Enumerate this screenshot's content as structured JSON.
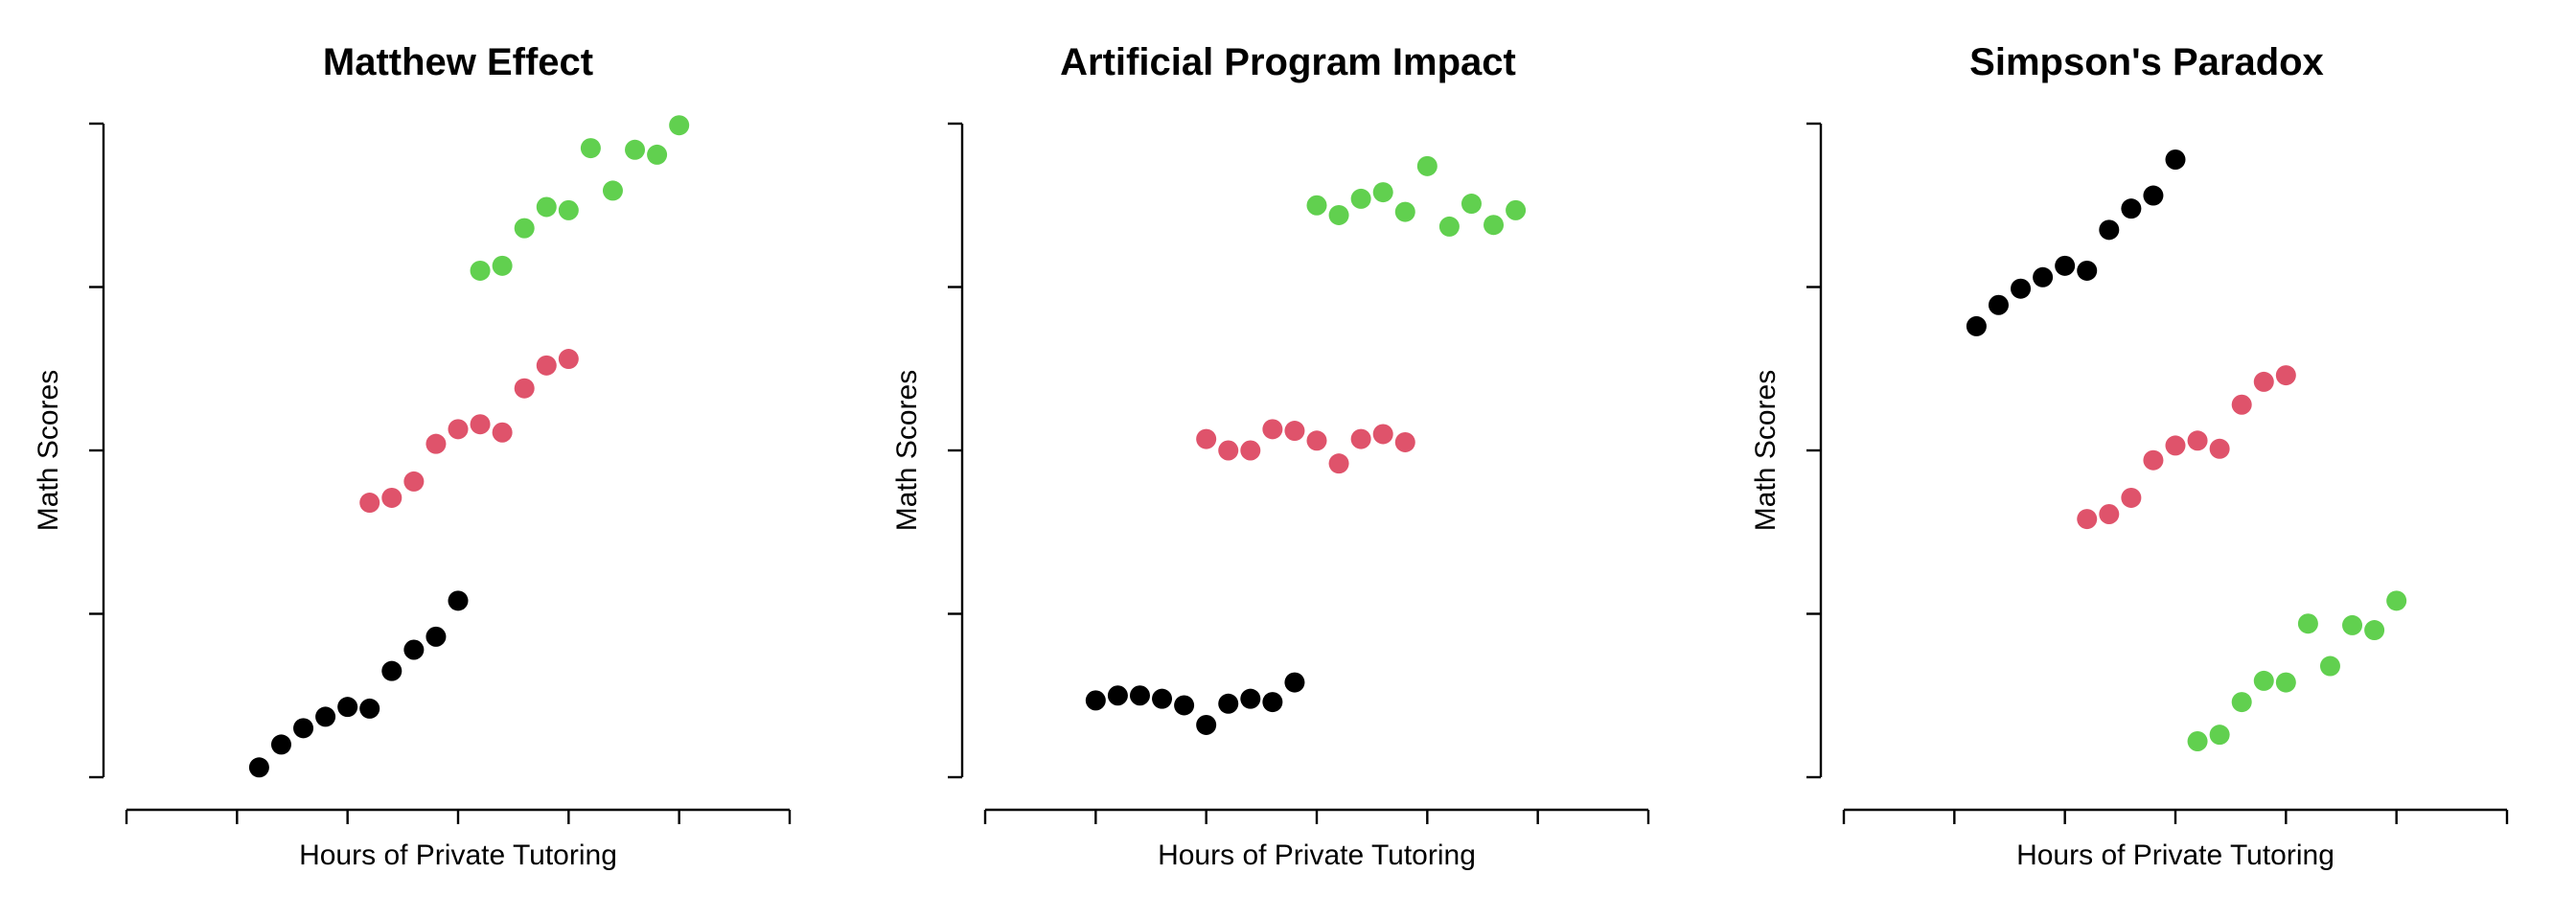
{
  "chart_data": [
    {
      "type": "scatter",
      "title": "Matthew Effect",
      "xlabel": "Hours of Private Tutoring",
      "ylabel": "Math Scores",
      "xlim": [
        -1,
        5
      ],
      "ylim": [
        0,
        4
      ],
      "xticks": [
        0,
        1,
        2,
        3,
        4
      ],
      "yticks": [
        0,
        1,
        2,
        3,
        4
      ],
      "tick_labels_shown": false,
      "grid": false,
      "legend": "none",
      "series": [
        {
          "color": "#000000",
          "points": [
            [
              0.2,
              0.06
            ],
            [
              0.4,
              0.2
            ],
            [
              0.6,
              0.3
            ],
            [
              0.8,
              0.37
            ],
            [
              1.0,
              0.43
            ],
            [
              1.2,
              0.42
            ],
            [
              1.4,
              0.65
            ],
            [
              1.6,
              0.78
            ],
            [
              1.8,
              0.86
            ],
            [
              2.0,
              1.08
            ]
          ]
        },
        {
          "color": "#DF536B",
          "points": [
            [
              1.2,
              1.68
            ],
            [
              1.4,
              1.71
            ],
            [
              1.6,
              1.81
            ],
            [
              1.8,
              2.04
            ],
            [
              2.0,
              2.13
            ],
            [
              2.2,
              2.16
            ],
            [
              2.4,
              2.11
            ],
            [
              2.6,
              2.38
            ],
            [
              2.8,
              2.52
            ],
            [
              3.0,
              2.56
            ]
          ]
        },
        {
          "color": "#61D04F",
          "points": [
            [
              2.2,
              3.1
            ],
            [
              2.4,
              3.13
            ],
            [
              2.6,
              3.36
            ],
            [
              2.8,
              3.49
            ],
            [
              3.0,
              3.47
            ],
            [
              3.2,
              3.85
            ],
            [
              3.4,
              3.59
            ],
            [
              3.6,
              3.84
            ],
            [
              3.8,
              3.81
            ],
            [
              4.0,
              3.99
            ]
          ]
        }
      ]
    },
    {
      "type": "scatter",
      "title": "Artificial Program Impact",
      "xlabel": "Hours of Private Tutoring",
      "ylabel": "Math Scores",
      "xlim": [
        -1,
        5
      ],
      "ylim": [
        0,
        4
      ],
      "xticks": [
        0,
        1,
        2,
        3,
        4
      ],
      "yticks": [
        0,
        1,
        2,
        3,
        4
      ],
      "tick_labels_shown": false,
      "grid": false,
      "legend": "none",
      "series": [
        {
          "color": "#000000",
          "points": [
            [
              0.0,
              0.47
            ],
            [
              0.2,
              0.5
            ],
            [
              0.4,
              0.5
            ],
            [
              0.6,
              0.48
            ],
            [
              0.8,
              0.44
            ],
            [
              1.0,
              0.32
            ],
            [
              1.2,
              0.45
            ],
            [
              1.4,
              0.48
            ],
            [
              1.6,
              0.46
            ],
            [
              1.8,
              0.58
            ]
          ]
        },
        {
          "color": "#DF536B",
          "points": [
            [
              1.0,
              2.07
            ],
            [
              1.2,
              2.0
            ],
            [
              1.4,
              2.0
            ],
            [
              1.6,
              2.13
            ],
            [
              1.8,
              2.12
            ],
            [
              2.0,
              2.06
            ],
            [
              2.2,
              1.92
            ],
            [
              2.4,
              2.07
            ],
            [
              2.6,
              2.1
            ],
            [
              2.8,
              2.05
            ]
          ]
        },
        {
          "color": "#61D04F",
          "points": [
            [
              2.0,
              3.5
            ],
            [
              2.2,
              3.44
            ],
            [
              2.4,
              3.54
            ],
            [
              2.6,
              3.58
            ],
            [
              2.8,
              3.46
            ],
            [
              3.0,
              3.74
            ],
            [
              3.2,
              3.37
            ],
            [
              3.4,
              3.51
            ],
            [
              3.6,
              3.38
            ],
            [
              3.8,
              3.47
            ]
          ]
        }
      ]
    },
    {
      "type": "scatter",
      "title": "Simpson's Paradox",
      "xlabel": "Hours of Private Tutoring",
      "ylabel": "Math Scores",
      "xlim": [
        -1,
        5
      ],
      "ylim": [
        0,
        4
      ],
      "xticks": [
        0,
        1,
        2,
        3,
        4
      ],
      "yticks": [
        0,
        1,
        2,
        3,
        4
      ],
      "tick_labels_shown": false,
      "grid": false,
      "legend": "none",
      "series": [
        {
          "color": "#000000",
          "points": [
            [
              0.2,
              2.76
            ],
            [
              0.4,
              2.89
            ],
            [
              0.6,
              2.99
            ],
            [
              0.8,
              3.06
            ],
            [
              1.0,
              3.13
            ],
            [
              1.2,
              3.1
            ],
            [
              1.4,
              3.35
            ],
            [
              1.6,
              3.48
            ],
            [
              1.8,
              3.56
            ],
            [
              2.0,
              3.78
            ]
          ]
        },
        {
          "color": "#DF536B",
          "points": [
            [
              1.2,
              1.58
            ],
            [
              1.4,
              1.61
            ],
            [
              1.6,
              1.71
            ],
            [
              1.8,
              1.94
            ],
            [
              2.0,
              2.03
            ],
            [
              2.2,
              2.06
            ],
            [
              2.4,
              2.01
            ],
            [
              2.6,
              2.28
            ],
            [
              2.8,
              2.42
            ],
            [
              3.0,
              2.46
            ]
          ]
        },
        {
          "color": "#61D04F",
          "points": [
            [
              2.2,
              0.22
            ],
            [
              2.4,
              0.26
            ],
            [
              2.6,
              0.46
            ],
            [
              2.8,
              0.59
            ],
            [
              3.0,
              0.58
            ],
            [
              3.2,
              0.94
            ],
            [
              3.4,
              0.68
            ],
            [
              3.6,
              0.93
            ],
            [
              3.8,
              0.9
            ],
            [
              4.0,
              1.08
            ]
          ]
        }
      ]
    }
  ]
}
